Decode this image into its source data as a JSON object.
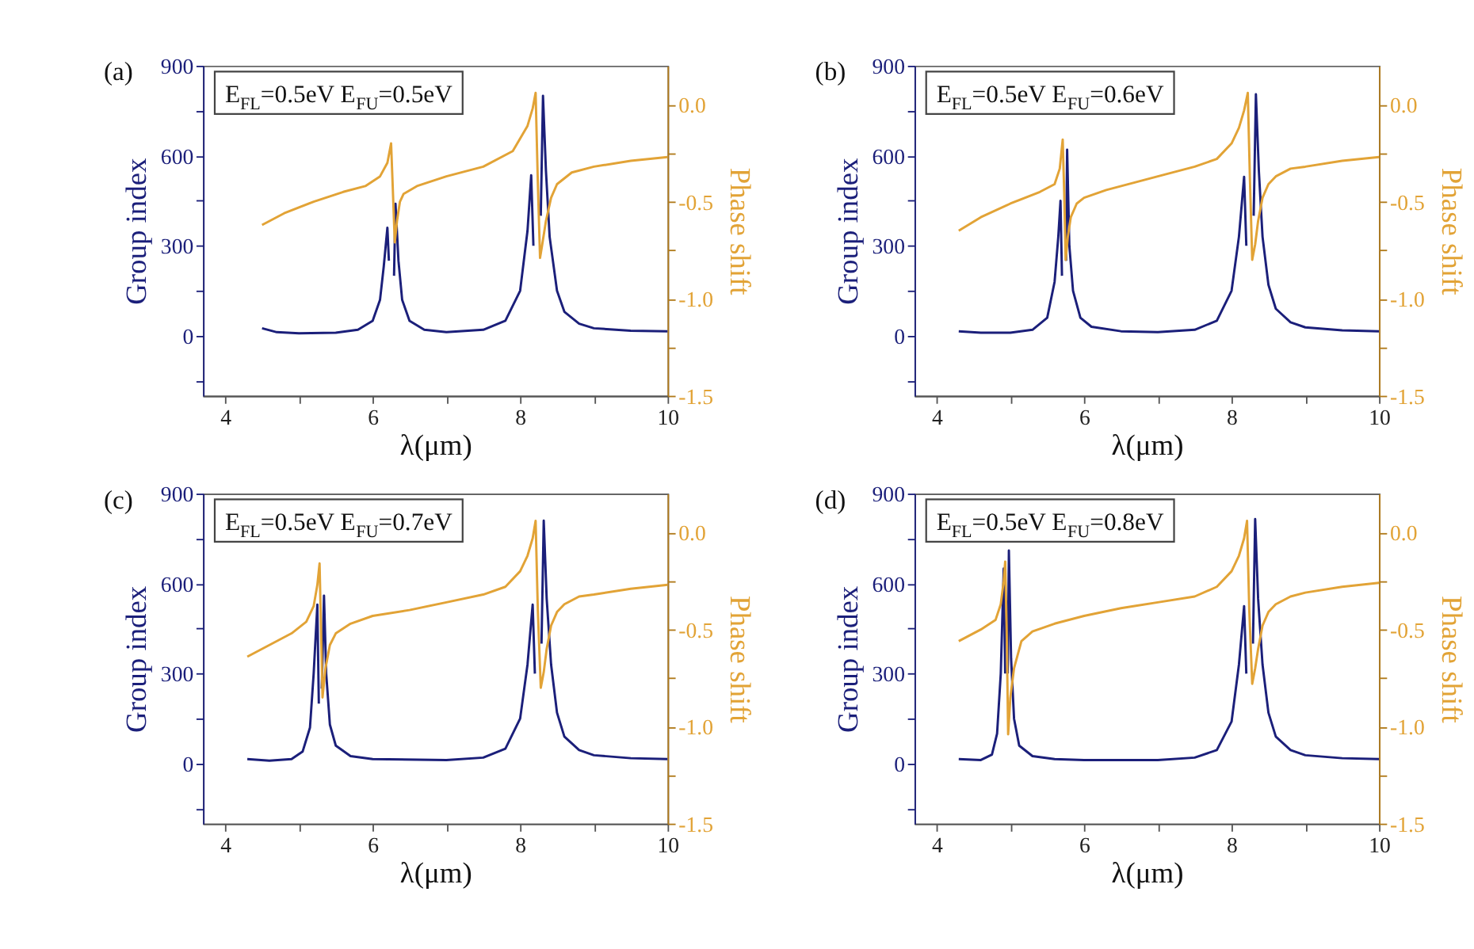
{
  "chart_data": [
    {
      "type": "line",
      "title": "(a)",
      "xlabel": "λ(μm)",
      "ylabel": "Group index",
      "y2label": "Phase shift",
      "annotations": [
        "E$_{FL}$=0.5eV E$_{FU}$=0.5eV"
      ],
      "xlim": [
        3.7,
        10
      ],
      "xticks": [
        4,
        {
          "value": 5,
          "label": null
        },
        6,
        {
          "value": 7,
          "label": null
        },
        8,
        {
          "value": 9,
          "label": null
        },
        10
      ],
      "ylim": [
        -200,
        900
      ],
      "yticks": [
        {
          "value": -150,
          "label": null
        },
        0,
        {
          "value": 150,
          "label": null
        },
        300,
        {
          "value": 450,
          "label": null
        },
        600,
        {
          "value": 750,
          "label": null
        },
        900
      ],
      "y2lim": [
        -1.5,
        0.2
      ],
      "y2ticks": [
        {
          "value": -1.5,
          "label": "-1.5"
        },
        {
          "value": -1.25,
          "label": null
        },
        {
          "value": -1.0,
          "label": "-1.0"
        },
        {
          "value": -0.75,
          "label": null
        },
        {
          "value": -0.5,
          "label": "-0.5"
        },
        {
          "value": -0.25,
          "label": null
        },
        {
          "value": 0,
          "label": "0.0"
        }
      ],
      "line_style": "solid",
      "series": [
        {
          "color": "#1b1f7a",
          "x": [
            4.5,
            4.7,
            5.0,
            5.5,
            5.8,
            6.0,
            6.1,
            6.15,
            6.2,
            6.22,
            6.24,
            6.27,
            6.29,
            6.31,
            6.35,
            6.4,
            6.5,
            6.7,
            7.0,
            7.5,
            7.8,
            8.0,
            8.1,
            8.15,
            8.18,
            8.2,
            8.26,
            8.28,
            8.31,
            8.35,
            8.4,
            8.5,
            8.6,
            8.8,
            9.0,
            9.5,
            10.0
          ],
          "values": [
            25,
            12,
            8,
            10,
            20,
            50,
            120,
            230,
            360,
            250,
            null,
            null,
            200,
            440,
            250,
            120,
            50,
            20,
            12,
            20,
            50,
            150,
            350,
            535,
            300,
            null,
            null,
            400,
            800,
            550,
            330,
            150,
            80,
            40,
            25,
            17,
            15
          ]
        },
        {
          "color": "#e2a336",
          "axis": "y2",
          "x": [
            4.5,
            4.8,
            5.2,
            5.6,
            5.9,
            6.1,
            6.2,
            6.25,
            6.27,
            6.3,
            6.33,
            6.37,
            6.42,
            6.6,
            7.0,
            7.5,
            7.9,
            8.1,
            8.17,
            8.21,
            8.24,
            8.27,
            8.3,
            8.35,
            8.42,
            8.5,
            8.7,
            9.0,
            9.5,
            10.0
          ],
          "values": [
            -0.62,
            -0.56,
            -0.5,
            -0.45,
            -0.42,
            -0.37,
            -0.3,
            -0.2,
            -0.4,
            -0.71,
            -0.6,
            -0.5,
            -0.46,
            -0.42,
            -0.37,
            -0.32,
            -0.24,
            -0.11,
            -0.02,
            0.06,
            -0.4,
            -0.79,
            -0.72,
            -0.6,
            -0.48,
            -0.41,
            -0.35,
            -0.32,
            -0.29,
            -0.27
          ]
        }
      ]
    },
    {
      "type": "line",
      "title": "(b)",
      "xlabel": "λ(μm)",
      "ylabel": "Group index",
      "y2label": "Phase shift",
      "annotations": [
        "E$_{FL}$=0.5eV E$_{FU}$=0.6eV"
      ],
      "xlim": [
        3.7,
        10
      ],
      "xticks": [
        4,
        {
          "value": 5,
          "label": null
        },
        6,
        {
          "value": 7,
          "label": null
        },
        8,
        {
          "value": 9,
          "label": null
        },
        10
      ],
      "ylim": [
        -200,
        900
      ],
      "yticks": [
        {
          "value": -150,
          "label": null
        },
        0,
        {
          "value": 150,
          "label": null
        },
        300,
        {
          "value": 450,
          "label": null
        },
        600,
        {
          "value": 750,
          "label": null
        },
        900
      ],
      "y2lim": [
        -1.5,
        0.2
      ],
      "y2ticks": [
        {
          "value": -1.5,
          "label": "-1.5"
        },
        {
          "value": -1.25,
          "label": null
        },
        {
          "value": -1.0,
          "label": "-1.0"
        },
        {
          "value": -0.75,
          "label": null
        },
        {
          "value": -0.5,
          "label": "-0.5"
        },
        {
          "value": -0.25,
          "label": null
        },
        {
          "value": 0,
          "label": "0.0"
        }
      ],
      "line_style": "solid",
      "series": [
        {
          "color": "#1b1f7a",
          "x": [
            4.3,
            4.6,
            5.0,
            5.3,
            5.5,
            5.6,
            5.65,
            5.68,
            5.7,
            5.71,
            5.74,
            5.755,
            5.77,
            5.8,
            5.85,
            5.95,
            6.1,
            6.5,
            7.0,
            7.5,
            7.8,
            8.0,
            8.1,
            8.17,
            8.2,
            8.21,
            8.28,
            8.3,
            8.33,
            8.37,
            8.42,
            8.5,
            8.6,
            8.8,
            9.0,
            9.5,
            10.0
          ],
          "values": [
            15,
            10,
            10,
            20,
            60,
            180,
            330,
            450,
            200,
            null,
            null,
            250,
            620,
            300,
            150,
            60,
            30,
            15,
            12,
            20,
            50,
            150,
            330,
            530,
            300,
            null,
            null,
            400,
            805,
            550,
            330,
            170,
            90,
            45,
            28,
            18,
            15
          ]
        },
        {
          "color": "#e2a336",
          "axis": "y2",
          "x": [
            4.3,
            4.6,
            5.0,
            5.4,
            5.6,
            5.67,
            5.71,
            5.73,
            5.75,
            5.78,
            5.82,
            5.9,
            6.0,
            6.3,
            7.0,
            7.5,
            7.8,
            8.0,
            8.1,
            8.17,
            8.22,
            8.25,
            8.28,
            8.32,
            8.36,
            8.42,
            8.5,
            8.6,
            8.8,
            9.0,
            9.5,
            10.0
          ],
          "values": [
            -0.65,
            -0.58,
            -0.51,
            -0.45,
            -0.41,
            -0.33,
            -0.18,
            -0.45,
            -0.8,
            -0.68,
            -0.58,
            -0.51,
            -0.48,
            -0.44,
            -0.37,
            -0.32,
            -0.28,
            -0.2,
            -0.12,
            -0.03,
            0.06,
            -0.4,
            -0.8,
            -0.72,
            -0.6,
            -0.48,
            -0.41,
            -0.37,
            -0.33,
            -0.32,
            -0.29,
            -0.27
          ]
        }
      ]
    },
    {
      "type": "line",
      "title": "(c)",
      "xlabel": "λ(μm)",
      "ylabel": "Group index",
      "y2label": "Phase shift",
      "annotations": [
        "E$_{FL}$=0.5eV E$_{FU}$=0.7eV"
      ],
      "xlim": [
        3.7,
        10
      ],
      "xticks": [
        4,
        {
          "value": 5,
          "label": null
        },
        6,
        {
          "value": 7,
          "label": null
        },
        8,
        {
          "value": 9,
          "label": null
        },
        10
      ],
      "ylim": [
        -200,
        900
      ],
      "yticks": [
        {
          "value": -150,
          "label": null
        },
        0,
        {
          "value": 150,
          "label": null
        },
        300,
        {
          "value": 450,
          "label": null
        },
        600,
        {
          "value": 750,
          "label": null
        },
        900
      ],
      "y2lim": [
        -1.5,
        0.2
      ],
      "y2ticks": [
        {
          "value": -1.5,
          "label": "-1.5"
        },
        {
          "value": -1.25,
          "label": null
        },
        {
          "value": -1.0,
          "label": "-1.0"
        },
        {
          "value": -0.75,
          "label": null
        },
        {
          "value": -0.5,
          "label": "-0.5"
        },
        {
          "value": -0.25,
          "label": null
        },
        {
          "value": 0,
          "label": "0.0"
        }
      ],
      "line_style": "solid",
      "series": [
        {
          "color": "#1b1f7a",
          "x": [
            4.3,
            4.6,
            4.9,
            5.05,
            5.15,
            5.2,
            5.25,
            5.27,
            5.275,
            5.3,
            5.31,
            5.34,
            5.37,
            5.42,
            5.5,
            5.7,
            6.0,
            7.0,
            7.5,
            7.8,
            8.0,
            8.1,
            8.17,
            8.2,
            8.21,
            8.27,
            8.29,
            8.32,
            8.36,
            8.42,
            8.5,
            8.6,
            8.8,
            9.0,
            9.5,
            10.0
          ],
          "values": [
            15,
            10,
            15,
            40,
            120,
            300,
            530,
            200,
            null,
            null,
            250,
            560,
            300,
            130,
            60,
            25,
            15,
            12,
            20,
            50,
            150,
            330,
            530,
            300,
            null,
            null,
            400,
            810,
            550,
            330,
            170,
            90,
            45,
            28,
            18,
            15
          ]
        },
        {
          "color": "#e2a336",
          "axis": "y2",
          "x": [
            4.3,
            4.6,
            4.9,
            5.1,
            5.2,
            5.25,
            5.28,
            5.3,
            5.32,
            5.36,
            5.42,
            5.5,
            5.7,
            6.0,
            6.5,
            7.0,
            7.5,
            7.8,
            8.0,
            8.1,
            8.17,
            8.21,
            8.24,
            8.28,
            8.32,
            8.36,
            8.42,
            8.5,
            8.6,
            8.8,
            9.0,
            9.5,
            10.0
          ],
          "values": [
            -0.64,
            -0.58,
            -0.52,
            -0.46,
            -0.38,
            -0.27,
            -0.16,
            -0.5,
            -0.85,
            -0.7,
            -0.58,
            -0.52,
            -0.47,
            -0.43,
            -0.4,
            -0.36,
            -0.32,
            -0.28,
            -0.2,
            -0.12,
            -0.03,
            0.06,
            -0.4,
            -0.8,
            -0.72,
            -0.6,
            -0.48,
            -0.41,
            -0.37,
            -0.33,
            -0.32,
            -0.29,
            -0.27
          ]
        }
      ]
    },
    {
      "type": "line",
      "title": "(d)",
      "xlabel": "λ(μm)",
      "ylabel": "Group index",
      "y2label": "Phase shift",
      "annotations": [
        "E$_{FL}$=0.5eV E$_{FU}$=0.8eV"
      ],
      "xlim": [
        3.7,
        10
      ],
      "xticks": [
        4,
        {
          "value": 5,
          "label": null
        },
        6,
        {
          "value": 7,
          "label": null
        },
        8,
        {
          "value": 9,
          "label": null
        },
        10
      ],
      "ylim": [
        -200,
        900
      ],
      "yticks": [
        {
          "value": -150,
          "label": null
        },
        0,
        {
          "value": 150,
          "label": null
        },
        300,
        {
          "value": 450,
          "label": null
        },
        600,
        {
          "value": 750,
          "label": null
        },
        900
      ],
      "y2lim": [
        -1.5,
        0.2
      ],
      "y2ticks": [
        {
          "value": -1.5,
          "label": "-1.5"
        },
        {
          "value": -1.25,
          "label": null
        },
        {
          "value": -1.0,
          "label": "-1.0"
        },
        {
          "value": -0.75,
          "label": null
        },
        {
          "value": -0.5,
          "label": "-0.5"
        },
        {
          "value": -0.25,
          "label": null
        },
        {
          "value": 0,
          "label": "0.0"
        }
      ],
      "line_style": "solid",
      "series": [
        {
          "color": "#1b1f7a",
          "x": [
            4.3,
            4.6,
            4.75,
            4.82,
            4.87,
            4.91,
            4.93,
            4.935,
            4.96,
            4.965,
            4.98,
            5.01,
            5.05,
            5.12,
            5.3,
            5.6,
            6.0,
            7.0,
            7.5,
            7.8,
            8.0,
            8.1,
            8.17,
            8.2,
            8.21,
            8.27,
            8.29,
            8.32,
            8.36,
            8.42,
            8.5,
            8.6,
            8.8,
            9.0,
            9.5,
            10.0
          ],
          "values": [
            15,
            12,
            30,
            100,
            300,
            650,
            300,
            null,
            null,
            300,
            710,
            350,
            150,
            60,
            25,
            15,
            12,
            12,
            20,
            45,
            140,
            330,
            525,
            300,
            null,
            null,
            400,
            815,
            550,
            330,
            170,
            90,
            45,
            28,
            18,
            15
          ]
        },
        {
          "color": "#e2a336",
          "axis": "y2",
          "x": [
            4.3,
            4.6,
            4.8,
            4.87,
            4.91,
            4.93,
            4.95,
            4.97,
            5.0,
            5.05,
            5.15,
            5.3,
            5.6,
            6.0,
            6.5,
            7.0,
            7.5,
            7.8,
            8.0,
            8.1,
            8.17,
            8.21,
            8.24,
            8.28,
            8.32,
            8.36,
            8.42,
            8.5,
            8.6,
            8.8,
            9.0,
            9.5,
            10.0
          ],
          "values": [
            -0.56,
            -0.5,
            -0.45,
            -0.37,
            -0.25,
            -0.15,
            -0.5,
            -1.04,
            -0.85,
            -0.7,
            -0.56,
            -0.51,
            -0.47,
            -0.43,
            -0.39,
            -0.36,
            -0.33,
            -0.28,
            -0.2,
            -0.12,
            -0.03,
            0.06,
            -0.4,
            -0.78,
            -0.7,
            -0.6,
            -0.48,
            -0.41,
            -0.37,
            -0.33,
            -0.31,
            -0.28,
            -0.26
          ]
        }
      ]
    }
  ]
}
